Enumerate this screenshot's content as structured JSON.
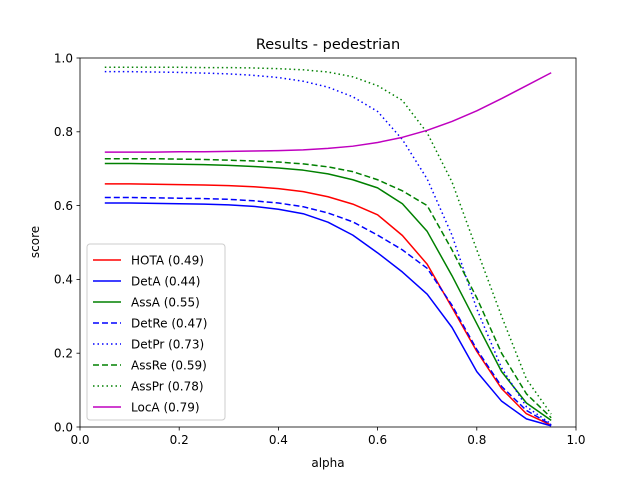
{
  "chart_data": {
    "type": "line",
    "title": "Results - pedestrian",
    "xlabel": "alpha",
    "ylabel": "score",
    "xlim": [
      0.0,
      1.0
    ],
    "ylim": [
      0.0,
      1.0
    ],
    "xticks": [
      "0.0",
      "0.2",
      "0.4",
      "0.6",
      "0.8",
      "1.0"
    ],
    "yticks": [
      "0.0",
      "0.2",
      "0.4",
      "0.6",
      "0.8",
      "1.0"
    ],
    "grid": false,
    "legend_position": "lower-left",
    "x": [
      0.05,
      0.1,
      0.15,
      0.2,
      0.25,
      0.3,
      0.35,
      0.4,
      0.45,
      0.5,
      0.55,
      0.6,
      0.65,
      0.7,
      0.75,
      0.8,
      0.85,
      0.9,
      0.95
    ],
    "series": [
      {
        "name": "HOTA (0.49)",
        "color": "#ff0000",
        "dash": "solid",
        "values": [
          0.659,
          0.659,
          0.658,
          0.657,
          0.656,
          0.654,
          0.651,
          0.646,
          0.638,
          0.624,
          0.604,
          0.575,
          0.519,
          0.441,
          0.324,
          0.205,
          0.104,
          0.036,
          0.005
        ]
      },
      {
        "name": "DetA (0.44)",
        "color": "#0000ff",
        "dash": "solid",
        "values": [
          0.607,
          0.607,
          0.606,
          0.605,
          0.604,
          0.602,
          0.598,
          0.59,
          0.578,
          0.555,
          0.52,
          0.472,
          0.42,
          0.36,
          0.27,
          0.15,
          0.07,
          0.022,
          0.003
        ]
      },
      {
        "name": "AssA (0.55)",
        "color": "#008000",
        "dash": "solid",
        "values": [
          0.714,
          0.714,
          0.713,
          0.712,
          0.711,
          0.709,
          0.706,
          0.702,
          0.696,
          0.686,
          0.67,
          0.648,
          0.605,
          0.53,
          0.41,
          0.28,
          0.15,
          0.065,
          0.018
        ]
      },
      {
        "name": "DetRe (0.47)",
        "color": "#0000ff",
        "dash": "dashed",
        "values": [
          0.622,
          0.622,
          0.621,
          0.62,
          0.619,
          0.617,
          0.613,
          0.607,
          0.597,
          0.58,
          0.556,
          0.52,
          0.48,
          0.43,
          0.33,
          0.21,
          0.11,
          0.045,
          0.006
        ]
      },
      {
        "name": "DetPr (0.73)",
        "color": "#0000ff",
        "dash": "dotted",
        "values": [
          0.963,
          0.963,
          0.962,
          0.961,
          0.959,
          0.957,
          0.953,
          0.947,
          0.937,
          0.921,
          0.895,
          0.855,
          0.779,
          0.672,
          0.52,
          0.32,
          0.16,
          0.055,
          0.008
        ]
      },
      {
        "name": "AssRe (0.59)",
        "color": "#008000",
        "dash": "dashed",
        "values": [
          0.727,
          0.727,
          0.727,
          0.726,
          0.725,
          0.723,
          0.721,
          0.718,
          0.713,
          0.705,
          0.692,
          0.67,
          0.64,
          0.6,
          0.48,
          0.35,
          0.2,
          0.09,
          0.025
        ]
      },
      {
        "name": "AssPr (0.78)",
        "color": "#008000",
        "dash": "dotted",
        "values": [
          0.975,
          0.975,
          0.975,
          0.975,
          0.974,
          0.974,
          0.973,
          0.971,
          0.968,
          0.962,
          0.949,
          0.925,
          0.885,
          0.797,
          0.664,
          0.48,
          0.3,
          0.13,
          0.035
        ]
      },
      {
        "name": "LocA (0.79)",
        "color": "#bf00bf",
        "dash": "solid",
        "values": [
          0.745,
          0.745,
          0.745,
          0.746,
          0.746,
          0.747,
          0.748,
          0.749,
          0.751,
          0.755,
          0.761,
          0.771,
          0.785,
          0.804,
          0.828,
          0.857,
          0.89,
          0.925,
          0.96
        ]
      }
    ]
  }
}
